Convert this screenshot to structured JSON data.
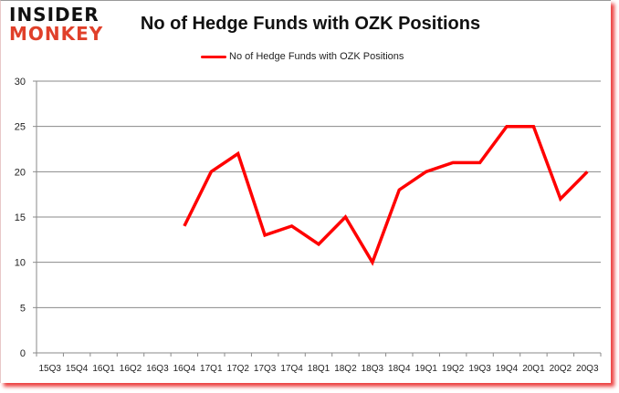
{
  "logo": {
    "line1": "INSIDER",
    "line2": "MONKEY"
  },
  "title": "No of Hedge Funds with OZK Positions",
  "legend": {
    "label": "No of Hedge Funds with OZK Positions",
    "color": "#ff0000"
  },
  "chart_data": {
    "type": "line",
    "title": "No of Hedge Funds with OZK Positions",
    "xlabel": "",
    "ylabel": "",
    "categories": [
      "15Q3",
      "15Q4",
      "16Q1",
      "16Q2",
      "16Q3",
      "16Q4",
      "17Q1",
      "17Q2",
      "17Q3",
      "17Q4",
      "18Q1",
      "18Q2",
      "18Q3",
      "18Q4",
      "19Q1",
      "19Q2",
      "19Q3",
      "19Q4",
      "20Q1",
      "20Q2",
      "20Q3"
    ],
    "series": [
      {
        "name": "No of Hedge Funds with OZK Positions",
        "color": "#ff0000",
        "values": [
          null,
          null,
          null,
          null,
          null,
          14,
          20,
          22,
          13,
          14,
          12,
          15,
          10,
          18,
          20,
          21,
          21,
          25,
          25,
          17,
          20
        ]
      }
    ],
    "ylim": [
      0,
      30
    ],
    "yticks": [
      0,
      5,
      10,
      15,
      20,
      25,
      30
    ],
    "grid": true,
    "legend_position": "top"
  }
}
